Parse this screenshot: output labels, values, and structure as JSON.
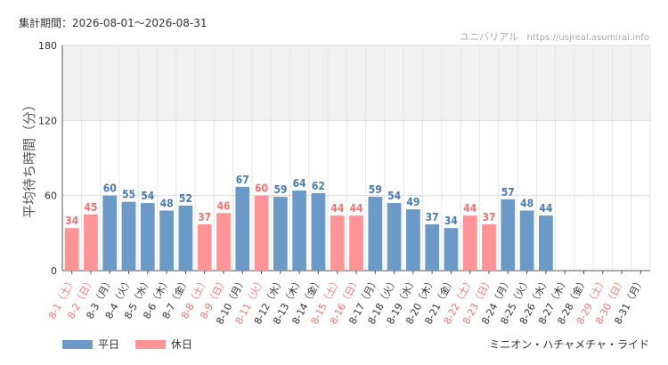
{
  "header": {
    "period_label": "集計期間：2026-08-01～2026-08-31",
    "site_name": "ユニバリアル",
    "site_url": "https://usjreal.asumirai.info"
  },
  "legend": {
    "weekday_label": "平日",
    "holiday_label": "休日"
  },
  "attraction_name": "ミニオン・ハチャメチャ・ライド",
  "colors": {
    "weekday": "#6b9ac8",
    "holiday": "#ff9496",
    "weekday_text": "#4a7ab5",
    "holiday_text": "#f0736f",
    "band": "#f2f2f2",
    "grid": "#e6e6e6"
  },
  "chart_data": {
    "type": "bar",
    "ylabel": "平均待ち時間（分）",
    "ylim": [
      0,
      180
    ],
    "yticks": [
      0,
      60,
      120,
      180
    ],
    "grid": true,
    "shaded_band": [
      120,
      180
    ],
    "categories": [
      "8-1（土）",
      "8-2（日）",
      "8-3（月）",
      "8-4（火）",
      "8-5（水）",
      "8-6（木）",
      "8-7（金）",
      "8-8（土）",
      "8-9（日）",
      "8-10（月）",
      "8-11（火）",
      "8-12（水）",
      "8-13（木）",
      "8-14（金）",
      "8-15（土）",
      "8-16（日）",
      "8-17（月）",
      "8-18（火）",
      "8-19（水）",
      "8-20（木）",
      "8-21（金）",
      "8-22（土）",
      "8-23（日）",
      "8-24（月）",
      "8-25（火）",
      "8-26（水）",
      "8-27（木）",
      "8-28（金）",
      "8-29（土）",
      "8-30（日）",
      "8-31（月）"
    ],
    "values": [
      34,
      45,
      60,
      55,
      54,
      48,
      52,
      37,
      46,
      67,
      60,
      59,
      64,
      62,
      44,
      44,
      59,
      54,
      49,
      37,
      34,
      44,
      37,
      57,
      48,
      44,
      null,
      null,
      null,
      null,
      null
    ],
    "day_type": [
      "holiday",
      "holiday",
      "weekday",
      "weekday",
      "weekday",
      "weekday",
      "weekday",
      "holiday",
      "holiday",
      "weekday",
      "holiday",
      "weekday",
      "weekday",
      "weekday",
      "holiday",
      "holiday",
      "weekday",
      "weekday",
      "weekday",
      "weekday",
      "weekday",
      "holiday",
      "holiday",
      "weekday",
      "weekday",
      "weekday",
      "weekday",
      "weekday",
      "holiday",
      "holiday",
      "weekday"
    ],
    "series": [
      {
        "name": "平日"
      },
      {
        "name": "休日"
      }
    ]
  }
}
